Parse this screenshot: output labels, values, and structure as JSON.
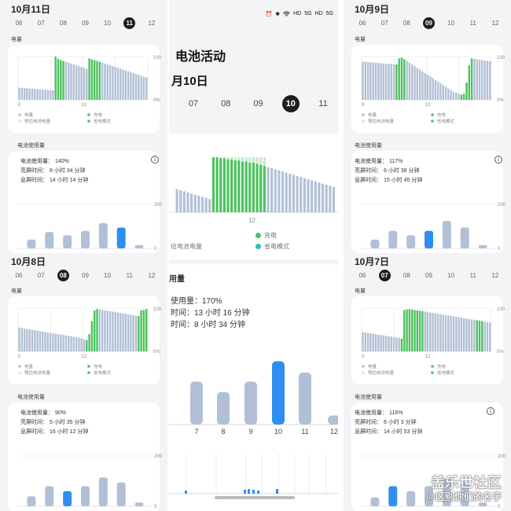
{
  "colors": {
    "battery_bar": "#b2c0d6",
    "charging": "#4cc25e",
    "charging_light": "#c5ecc9",
    "save_mode": "#28c2c0",
    "highlight_bar": "#2f8ff0",
    "usage_bar": "#b2c0d6"
  },
  "icons": [
    "alarm-icon",
    "bluetooth-icon",
    "wifi-icon",
    "signal-icon"
  ],
  "statusbar": {
    "items": [
      "⏰",
      "✱",
      "HD",
      "5G",
      "HD",
      "5G"
    ]
  },
  "center": {
    "title": "电池活动",
    "date": "月10日",
    "days": [
      "07",
      "08",
      "09",
      "10",
      "11"
    ],
    "selected_day": "10",
    "level_tick": "12",
    "legend_left": "估电池电量",
    "legend_charge": "充电",
    "legend_save": "省电模式",
    "usage_title": "用量",
    "stats": [
      "使用量：170%",
      "时间：13 小时 16 分钟",
      "时间：8 小时 34 分钟"
    ],
    "usage_x": [
      "7",
      "8",
      "9",
      "10",
      "11",
      "12"
    ],
    "usage_values": [
      95,
      72,
      95,
      140,
      115,
      20
    ],
    "usage_highlight": 3
  },
  "panels": [
    {
      "id": "oct11",
      "title": "10月11日",
      "days": [
        "06",
        "07",
        "08",
        "09",
        "10",
        "11",
        "12"
      ],
      "selected_day": "11",
      "stats": [
        "电池使用量： 140%",
        "亮屏时间： 8 小时 34 分钟",
        "息屏时间： 14 小时 14 分钟"
      ],
      "usage_values": [
        40,
        75,
        60,
        80,
        115,
        95,
        15
      ],
      "usage_highlight": 5
    },
    {
      "id": "oct9",
      "title": "10月9日",
      "days": [
        "06",
        "07",
        "08",
        "09",
        "10",
        "11",
        "12"
      ],
      "selected_day": "09",
      "stats": [
        "电池使用量： 117%",
        "亮屏时间： 6 小时 38 分钟",
        "息屏时间： 15 小时 45 分钟"
      ],
      "usage_values": [
        40,
        80,
        60,
        80,
        125,
        95,
        15
      ],
      "usage_highlight": 3
    },
    {
      "id": "oct8",
      "title": "10月8日",
      "days": [
        "06",
        "07",
        "08",
        "09",
        "10",
        "11",
        "12"
      ],
      "selected_day": "08",
      "stats": [
        "电池使用量： 90%",
        "亮屏时间： 5 小时 35 分钟",
        "息屏时间： 16 小时 12 分钟"
      ],
      "usage_values": [
        40,
        80,
        60,
        80,
        115,
        95,
        15
      ],
      "usage_highlight": 2
    },
    {
      "id": "oct7",
      "title": "10月7日",
      "days": [
        "06",
        "07",
        "08",
        "09",
        "10",
        "11",
        "12"
      ],
      "selected_day": "07",
      "stats": [
        "电池使用量： 116%",
        "亮屏时间： 6 小时 3 分钟",
        "息屏时间： 14 小时 53 分钟"
      ],
      "usage_values": [
        35,
        80,
        60,
        80,
        110,
        95,
        15
      ],
      "usage_highlight": 1
    }
  ],
  "labels": {
    "level_section": "电量",
    "usage_section": "电池使用量",
    "axis_100": "100",
    "axis_0pct": "0%",
    "axis_200": "200",
    "axis_0": "0",
    "axis_12": "12",
    "legend_level": "电量",
    "legend_estimate": "预估电池电量",
    "legend_charge": "充电",
    "legend_save": "省电模式"
  },
  "watermark": {
    "line1": "盖乐世社区",
    "line2": "@区别你们的名字"
  }
}
